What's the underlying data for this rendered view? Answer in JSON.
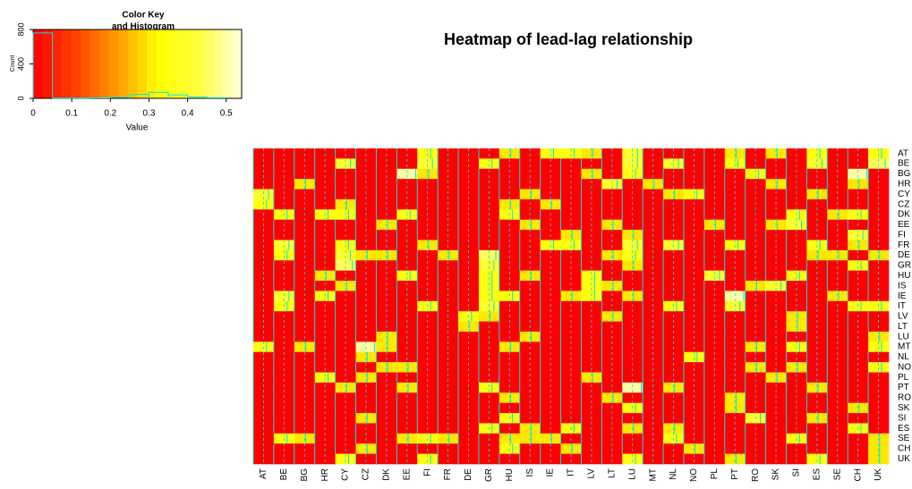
{
  "chart_data": {
    "type": "heatmap",
    "title": "Heatmap of lead-lag relationship",
    "key_title": [
      "Color Key",
      "and Histogram"
    ],
    "key_xlabel": "Value",
    "key_ylabel": "Count",
    "key_xlim": [
      0,
      0.54
    ],
    "key_xticks": [
      0,
      0.1,
      0.2,
      0.3,
      0.4,
      0.5
    ],
    "key_ylim": [
      0,
      800
    ],
    "key_yticks": [
      0,
      400,
      800
    ],
    "histogram": {
      "bins": [
        0,
        0.05,
        0.1,
        0.15,
        0.2,
        0.25,
        0.3,
        0.35,
        0.4,
        0.45,
        0.5
      ],
      "counts": [
        760,
        2,
        3,
        5,
        12,
        45,
        70,
        40,
        18,
        6
      ]
    },
    "colors": [
      "#ff0000",
      "#ff4000",
      "#ff9900",
      "#ffff00",
      "#ffff40",
      "#ffffe0"
    ],
    "trace_color": "#00e5e5",
    "rows": [
      "AT",
      "BE",
      "BG",
      "HR",
      "CY",
      "CZ",
      "DK",
      "EE",
      "FI",
      "FR",
      "DE",
      "GR",
      "HU",
      "IS",
      "IE",
      "IT",
      "LV",
      "LT",
      "LU",
      "MT",
      "NL",
      "NO",
      "PL",
      "PT",
      "RO",
      "SK",
      "SI",
      "ES",
      "SE",
      "CH",
      "UK"
    ],
    "columns": [
      "AT",
      "BE",
      "BG",
      "HR",
      "CY",
      "CZ",
      "DK",
      "EE",
      "FI",
      "FR",
      "DE",
      "GR",
      "HU",
      "IS",
      "IE",
      "IT",
      "LV",
      "LT",
      "LU",
      "MT",
      "NL",
      "NO",
      "PL",
      "PT",
      "RO",
      "SK",
      "SI",
      "ES",
      "SE",
      "CH",
      "UK"
    ],
    "matrix": [
      [
        0,
        0,
        0,
        0,
        0,
        0,
        0,
        0,
        0.35,
        0,
        0,
        0,
        0.3,
        0,
        0.35,
        0.35,
        0.3,
        0,
        0.4,
        0,
        0,
        0,
        0,
        0.3,
        0,
        0.3,
        0,
        0.35,
        0,
        0,
        0.35
      ],
      [
        0,
        0,
        0,
        0,
        0.4,
        0,
        0,
        0,
        0.4,
        0,
        0,
        0.35,
        0,
        0,
        0,
        0,
        0,
        0,
        0.4,
        0,
        0.4,
        0,
        0,
        0.35,
        0,
        0,
        0,
        0.4,
        0,
        0,
        0.45
      ],
      [
        0,
        0,
        0,
        0,
        0,
        0,
        0,
        0.5,
        0.3,
        0,
        0,
        0,
        0,
        0,
        0,
        0,
        0.3,
        0,
        0.35,
        0,
        0,
        0,
        0,
        0,
        0.35,
        0,
        0,
        0,
        0,
        0.5,
        0
      ],
      [
        0,
        0,
        0.3,
        0,
        0,
        0,
        0,
        0,
        0,
        0,
        0,
        0,
        0,
        0,
        0,
        0,
        0,
        0.4,
        0,
        0.3,
        0,
        0,
        0,
        0,
        0,
        0.3,
        0,
        0,
        0,
        0.3,
        0
      ],
      [
        0.4,
        0,
        0,
        0,
        0,
        0,
        0,
        0,
        0,
        0,
        0,
        0,
        0,
        0.3,
        0,
        0,
        0,
        0,
        0,
        0,
        0.3,
        0.35,
        0,
        0,
        0,
        0,
        0,
        0.3,
        0,
        0,
        0
      ],
      [
        0.35,
        0,
        0,
        0,
        0.3,
        0,
        0,
        0,
        0,
        0,
        0,
        0,
        0.3,
        0,
        0.3,
        0,
        0,
        0,
        0,
        0,
        0,
        0,
        0,
        0,
        0,
        0,
        0,
        0,
        0,
        0,
        0
      ],
      [
        0,
        0.35,
        0,
        0.35,
        0.35,
        0,
        0,
        0.35,
        0,
        0,
        0,
        0,
        0.35,
        0,
        0,
        0,
        0,
        0,
        0,
        0,
        0,
        0,
        0,
        0,
        0,
        0,
        0.35,
        0,
        0.3,
        0.35,
        0
      ],
      [
        0,
        0,
        0,
        0,
        0,
        0,
        0.3,
        0,
        0,
        0,
        0,
        0,
        0,
        0.3,
        0,
        0,
        0,
        0.3,
        0,
        0,
        0,
        0,
        0.3,
        0,
        0,
        0.3,
        0.4,
        0,
        0,
        0,
        0
      ],
      [
        0,
        0,
        0,
        0,
        0,
        0,
        0,
        0,
        0,
        0,
        0,
        0,
        0,
        0,
        0,
        0.3,
        0,
        0,
        0.3,
        0,
        0,
        0,
        0,
        0,
        0,
        0,
        0,
        0,
        0,
        0.4,
        0
      ],
      [
        0,
        0.4,
        0,
        0,
        0.35,
        0,
        0,
        0,
        0.3,
        0,
        0,
        0,
        0,
        0,
        0.35,
        0.35,
        0,
        0,
        0.4,
        0,
        0.4,
        0,
        0,
        0.35,
        0,
        0,
        0,
        0.35,
        0,
        0.3,
        0
      ],
      [
        0,
        0.35,
        0,
        0,
        0.4,
        0.3,
        0.3,
        0,
        0,
        0.3,
        0,
        0.45,
        0,
        0,
        0,
        0,
        0,
        0.3,
        0.35,
        0,
        0,
        0,
        0,
        0,
        0,
        0,
        0,
        0.3,
        0.3,
        0,
        0.3
      ],
      [
        0,
        0,
        0,
        0,
        0.45,
        0,
        0,
        0,
        0,
        0,
        0,
        0.4,
        0,
        0,
        0,
        0,
        0,
        0,
        0.3,
        0,
        0,
        0,
        0,
        0,
        0,
        0,
        0,
        0,
        0,
        0.35,
        0
      ],
      [
        0,
        0,
        0,
        0.3,
        0,
        0,
        0,
        0.35,
        0,
        0,
        0,
        0.35,
        0,
        0.3,
        0,
        0,
        0.35,
        0,
        0,
        0,
        0,
        0,
        0.4,
        0,
        0,
        0,
        0.35,
        0,
        0,
        0,
        0
      ],
      [
        0,
        0,
        0,
        0,
        0.3,
        0,
        0,
        0,
        0,
        0,
        0,
        0.35,
        0,
        0,
        0,
        0,
        0.35,
        0.3,
        0,
        0,
        0,
        0,
        0,
        0,
        0.3,
        0.4,
        0,
        0,
        0,
        0,
        0
      ],
      [
        0,
        0.4,
        0,
        0.35,
        0,
        0,
        0,
        0,
        0,
        0,
        0,
        0.35,
        0.35,
        0,
        0,
        0.3,
        0.35,
        0,
        0.3,
        0,
        0,
        0,
        0,
        0.5,
        0,
        0,
        0,
        0,
        0.3,
        0,
        0
      ],
      [
        0,
        0.35,
        0,
        0,
        0,
        0,
        0,
        0,
        0.35,
        0,
        0,
        0.4,
        0,
        0,
        0,
        0,
        0,
        0,
        0,
        0,
        0.35,
        0,
        0,
        0.4,
        0,
        0,
        0,
        0,
        0,
        0.35,
        0.35
      ],
      [
        0,
        0,
        0,
        0,
        0,
        0,
        0,
        0,
        0,
        0,
        0.35,
        0.3,
        0,
        0,
        0,
        0,
        0,
        0.3,
        0,
        0,
        0,
        0,
        0,
        0,
        0,
        0,
        0.3,
        0,
        0,
        0,
        0
      ],
      [
        0,
        0,
        0,
        0,
        0,
        0,
        0,
        0,
        0,
        0,
        0.3,
        0,
        0,
        0,
        0,
        0,
        0,
        0,
        0,
        0,
        0,
        0,
        0,
        0,
        0,
        0,
        0.3,
        0,
        0,
        0,
        0
      ],
      [
        0,
        0,
        0,
        0,
        0,
        0,
        0.3,
        0,
        0,
        0,
        0,
        0,
        0,
        0.3,
        0,
        0,
        0,
        0,
        0,
        0,
        0,
        0,
        0,
        0,
        0,
        0,
        0,
        0,
        0,
        0,
        0.3
      ],
      [
        0.35,
        0,
        0.3,
        0,
        0,
        0.5,
        0.3,
        0,
        0,
        0,
        0,
        0,
        0.3,
        0,
        0,
        0,
        0,
        0,
        0,
        0,
        0,
        0,
        0,
        0,
        0.3,
        0,
        0.35,
        0,
        0,
        0,
        0.35
      ],
      [
        0,
        0,
        0,
        0,
        0,
        0.3,
        0,
        0,
        0,
        0,
        0,
        0,
        0,
        0,
        0,
        0,
        0,
        0,
        0,
        0,
        0,
        0.35,
        0,
        0,
        0,
        0,
        0,
        0,
        0,
        0,
        0
      ],
      [
        0,
        0,
        0,
        0,
        0,
        0,
        0.3,
        0.3,
        0,
        0,
        0,
        0,
        0,
        0,
        0,
        0,
        0,
        0,
        0,
        0,
        0,
        0,
        0,
        0,
        0.3,
        0,
        0.3,
        0,
        0,
        0,
        0.35
      ],
      [
        0,
        0,
        0,
        0.35,
        0,
        0.3,
        0,
        0,
        0,
        0,
        0,
        0,
        0,
        0,
        0,
        0,
        0.3,
        0,
        0,
        0,
        0,
        0,
        0,
        0,
        0,
        0.3,
        0,
        0,
        0,
        0,
        0
      ],
      [
        0,
        0,
        0,
        0,
        0.3,
        0,
        0,
        0.3,
        0,
        0,
        0,
        0.35,
        0,
        0,
        0,
        0,
        0,
        0,
        0.5,
        0,
        0.3,
        0,
        0,
        0,
        0,
        0,
        0,
        0.3,
        0,
        0,
        0
      ],
      [
        0,
        0,
        0,
        0,
        0,
        0,
        0,
        0,
        0,
        0,
        0,
        0,
        0.3,
        0,
        0,
        0,
        0,
        0.3,
        0,
        0,
        0,
        0,
        0,
        0.3,
        0,
        0,
        0,
        0,
        0,
        0,
        0
      ],
      [
        0,
        0,
        0,
        0,
        0,
        0,
        0,
        0,
        0,
        0,
        0,
        0,
        0,
        0,
        0,
        0,
        0,
        0,
        0.35,
        0,
        0,
        0,
        0,
        0.3,
        0,
        0,
        0,
        0,
        0,
        0.3,
        0
      ],
      [
        0,
        0,
        0,
        0,
        0,
        0.3,
        0,
        0,
        0,
        0,
        0,
        0,
        0.35,
        0,
        0,
        0,
        0,
        0,
        0,
        0,
        0,
        0,
        0,
        0,
        0.4,
        0,
        0,
        0.3,
        0,
        0,
        0
      ],
      [
        0,
        0,
        0,
        0,
        0,
        0,
        0,
        0,
        0,
        0,
        0,
        0.35,
        0,
        0.3,
        0,
        0.35,
        0,
        0,
        0.3,
        0,
        0.3,
        0,
        0,
        0,
        0,
        0,
        0,
        0,
        0,
        0.35,
        0
      ],
      [
        0,
        0.35,
        0.3,
        0,
        0,
        0,
        0,
        0.3,
        0.35,
        0.3,
        0,
        0,
        0.3,
        0.3,
        0.3,
        0,
        0,
        0,
        0,
        0,
        0.35,
        0,
        0,
        0,
        0,
        0,
        0.35,
        0,
        0,
        0,
        0.3
      ],
      [
        0,
        0,
        0,
        0,
        0,
        0.3,
        0,
        0,
        0,
        0,
        0,
        0,
        0.35,
        0,
        0,
        0.3,
        0,
        0,
        0,
        0,
        0,
        0.3,
        0,
        0,
        0,
        0,
        0,
        0,
        0,
        0,
        0.3
      ],
      [
        0,
        0,
        0,
        0,
        0.35,
        0,
        0,
        0,
        0.35,
        0,
        0,
        0,
        0,
        0,
        0,
        0,
        0,
        0,
        0.35,
        0,
        0,
        0,
        0,
        0.3,
        0,
        0,
        0,
        0.35,
        0,
        0,
        0.3
      ]
    ]
  }
}
